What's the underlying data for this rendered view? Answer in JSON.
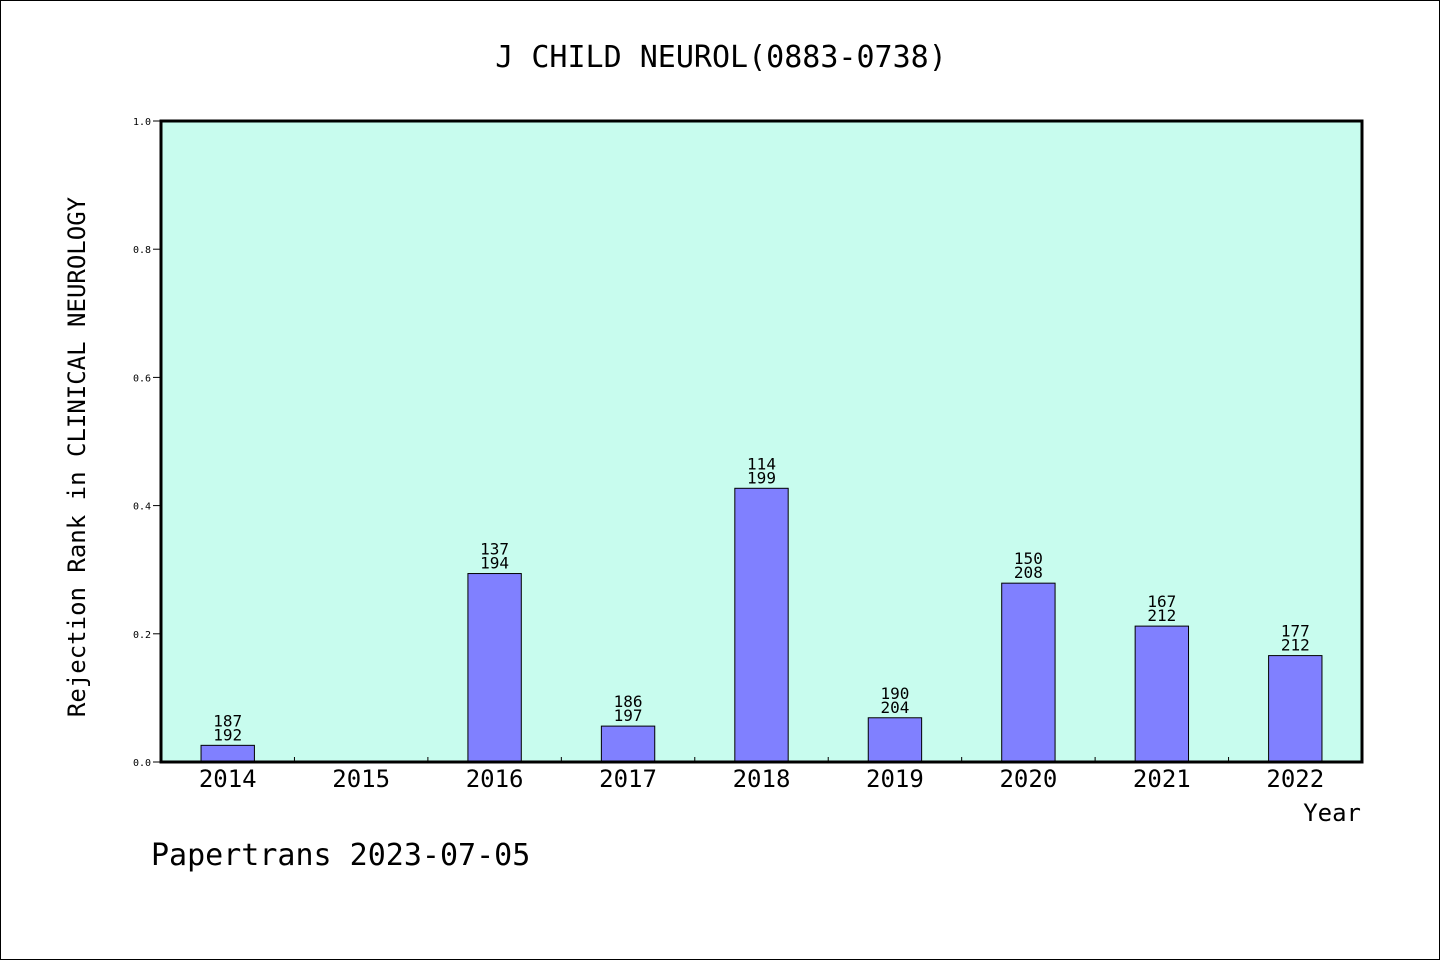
{
  "chart_data": {
    "type": "bar",
    "title": "J CHILD NEUROL(0883-0738)",
    "xlabel": "Year",
    "ylabel": "Rejection Rank in CLINICAL NEUROLOGY",
    "ylim": [
      0,
      1.0
    ],
    "yticks": [
      "0.0",
      "0.2",
      "0.4",
      "0.6",
      "0.8",
      "1.0"
    ],
    "categories": [
      "2014",
      "2015",
      "2016",
      "2017",
      "2018",
      "2019",
      "2020",
      "2021",
      "2022"
    ],
    "values": [
      0.026,
      null,
      0.294,
      0.056,
      0.427,
      0.069,
      0.279,
      0.212,
      0.166
    ],
    "labels_top": [
      "187",
      "",
      "137",
      "186",
      "114",
      "190",
      "150",
      "167",
      "177"
    ],
    "labels_bottom": [
      "192",
      "",
      "194",
      "197",
      "199",
      "204",
      "208",
      "212",
      "212"
    ],
    "colors": {
      "plot_bg": "#c8fcee",
      "bar_fill": "#8080ff",
      "bar_stroke": "#000000"
    },
    "grid": false,
    "legend": "none"
  },
  "footer": {
    "watermark": "Papertrans 2023-07-05"
  }
}
